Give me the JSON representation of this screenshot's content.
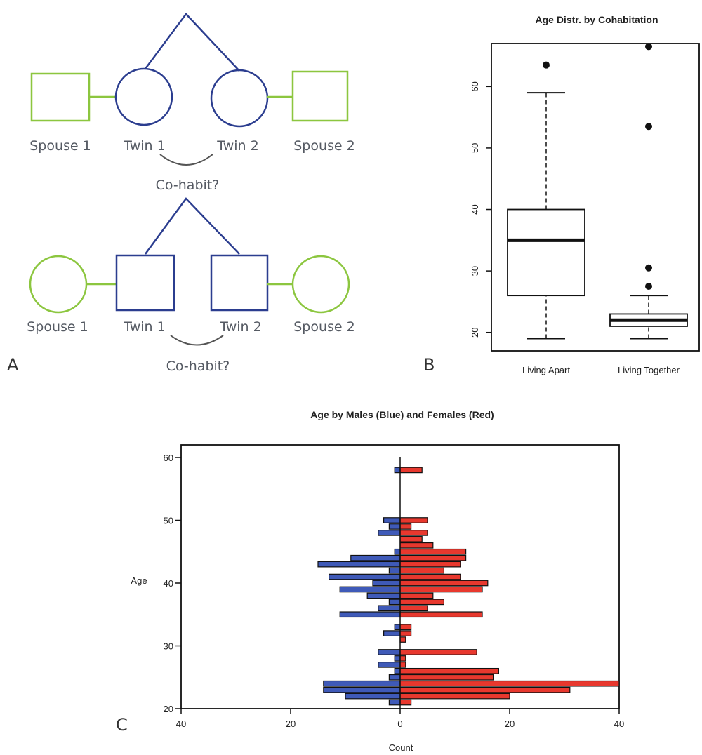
{
  "panels": {
    "a": "A",
    "b": "B",
    "c": "C"
  },
  "pedigree": {
    "top": {
      "spouse_1": "Spouse 1",
      "twin_1": "Twin 1",
      "twin_2": "Twin 2",
      "spouse_2": "Spouse 2",
      "question": "Co-habit?"
    },
    "bottom": {
      "spouse_1": "Spouse 1",
      "twin_1": "Twin 1",
      "twin_2": "Twin 2",
      "spouse_2": "Spouse 2",
      "question": "Co-habit?"
    },
    "colors": {
      "twin": "#2b3d8f",
      "spouse": "#8cc63f",
      "link": "#555555"
    }
  },
  "chart_data": [
    {
      "type": "box",
      "title": "Age Distr. by Cohabitation",
      "xlabel": "",
      "ylabel": "",
      "categories": [
        "Living Apart",
        "Living Together"
      ],
      "yticks": [
        20,
        30,
        40,
        50,
        60
      ],
      "ylim": [
        17,
        67
      ],
      "grid": false,
      "boxes": [
        {
          "category": "Living Apart",
          "min": 19,
          "q1": 26,
          "median": 35,
          "q3": 40,
          "max": 59,
          "outliers": [
            63.5
          ]
        },
        {
          "category": "Living Together",
          "min": 19,
          "q1": 21,
          "median": 22,
          "q3": 23,
          "max": 26,
          "outliers": [
            27.5,
            30.5,
            53.5,
            66.5
          ]
        }
      ]
    },
    {
      "type": "bar",
      "orientation": "horizontal",
      "title": "Age by Males (Blue) and Females (Red)",
      "xlabel": "Count",
      "ylabel": "Age",
      "xticks": [
        40,
        20,
        0,
        20,
        40
      ],
      "yticks": [
        20,
        30,
        40,
        50,
        60
      ],
      "xlim": [
        -40,
        40
      ],
      "ylim": [
        20,
        60
      ],
      "grid": false,
      "ages": [
        21,
        22,
        23,
        24,
        25,
        26,
        27,
        28,
        29,
        30,
        31,
        32,
        33,
        34,
        35,
        36,
        37,
        38,
        39,
        40,
        41,
        42,
        43,
        44,
        45,
        46,
        47,
        48,
        49,
        50,
        51,
        52,
        53,
        54,
        55,
        56,
        57,
        58,
        59
      ],
      "series": [
        {
          "name": "Males (Blue)",
          "color": "#3f5ab8",
          "values": [
            2,
            10,
            14,
            14,
            2,
            1,
            4,
            1,
            4,
            0,
            0,
            3,
            1,
            0,
            11,
            4,
            2,
            6,
            11,
            5,
            13,
            2,
            15,
            9,
            1,
            0,
            0,
            4,
            2,
            3,
            0,
            0,
            0,
            0,
            0,
            0,
            0,
            1,
            0
          ]
        },
        {
          "name": "Females (Red)",
          "color": "#e8382e",
          "values": [
            2,
            20,
            31,
            40,
            17,
            18,
            1,
            1,
            14,
            0,
            1,
            2,
            2,
            0,
            15,
            5,
            8,
            6,
            15,
            16,
            11,
            8,
            11,
            12,
            12,
            6,
            4,
            5,
            2,
            5,
            0,
            0,
            0,
            0,
            0,
            0,
            0,
            4,
            0
          ]
        }
      ]
    }
  ]
}
